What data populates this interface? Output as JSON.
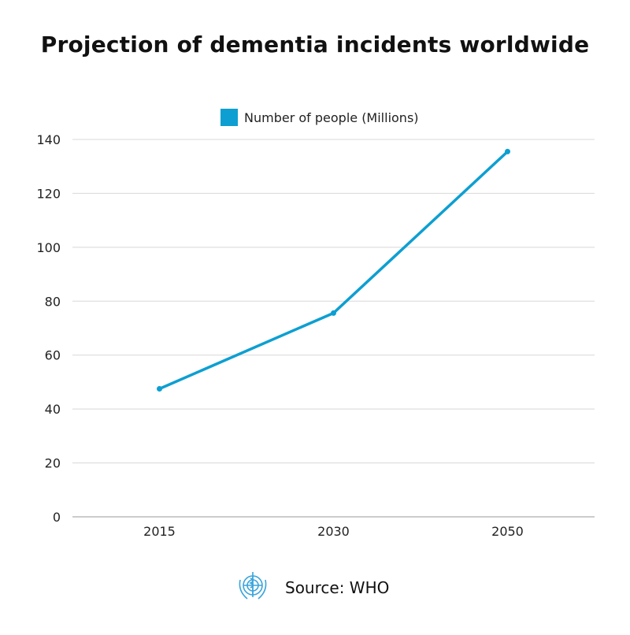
{
  "chart_data": {
    "type": "line",
    "title": "Projection of dementia incidents worldwide",
    "categories": [
      "2015",
      "2030",
      "2050"
    ],
    "series": [
      {
        "name": "Number of people (Millions)",
        "values": [
          47.5,
          75.6,
          135.5
        ],
        "color": "#0d9fd1"
      }
    ],
    "xlabel": "",
    "ylabel": "",
    "ylim": [
      0,
      140
    ],
    "yticks": [
      0,
      20,
      40,
      60,
      80,
      100,
      120,
      140
    ],
    "grid": true,
    "legend_position": "top-center"
  },
  "source": {
    "text": "Source: WHO",
    "logo": "WHO emblem",
    "logo_color": "#3aa4dc"
  }
}
